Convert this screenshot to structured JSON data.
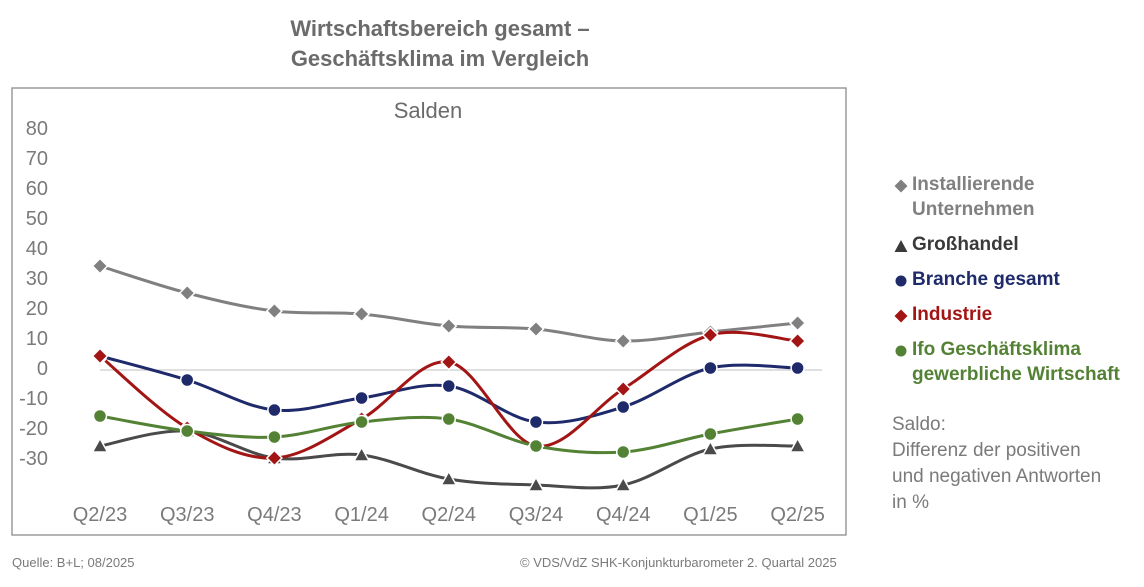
{
  "title_line1": "Wirtschaftsbereich gesamt –",
  "title_line2": "Geschäftsklima im Vergleich",
  "chart_data": {
    "type": "line",
    "subtitle": "Salden",
    "categories": [
      "Q2/23",
      "Q3/23",
      "Q4/23",
      "Q1/24",
      "Q2/24",
      "Q3/24",
      "Q4/24",
      "Q1/25",
      "Q2/25"
    ],
    "yticks": [
      80,
      70,
      60,
      50,
      40,
      30,
      20,
      10,
      0,
      -10,
      -20,
      -30
    ],
    "ylim": [
      -40,
      80
    ],
    "grid": false,
    "legend_position": "right",
    "series": [
      {
        "name": "Installierende Unternehmen",
        "marker": "diamond",
        "color": "#808080",
        "values": [
          34,
          25,
          19,
          18,
          14,
          13,
          9,
          12,
          15
        ]
      },
      {
        "name": "Großhandel",
        "marker": "triangle",
        "color": "#4a4a4a",
        "values": [
          -26,
          -21,
          -30,
          -29,
          -37,
          -39,
          -39,
          -27,
          -26
        ]
      },
      {
        "name": "Branche gesamt",
        "marker": "circle",
        "color": "#1f2a6b",
        "values": [
          4,
          -4,
          -14,
          -10,
          -6,
          -18,
          -13,
          0,
          0
        ]
      },
      {
        "name": "Industrie",
        "marker": "diamond",
        "color": "#a31515",
        "values": [
          4,
          -20,
          -30,
          -17,
          2,
          -26,
          -7,
          11,
          9
        ]
      },
      {
        "name": "Ifo Geschäftsklima gewerbliche Wirtschaft",
        "marker": "circle",
        "color": "#548235",
        "values": [
          -16,
          -21,
          -23,
          -18,
          -17,
          -26,
          -28,
          -22,
          -17
        ]
      }
    ]
  },
  "legend": [
    {
      "line1": "Installierende",
      "line2": "Unternehmen",
      "color": "#808080",
      "marker": "diamond"
    },
    {
      "line1": "Großhandel",
      "line2": "",
      "color": "#3a3a3a",
      "marker": "triangle"
    },
    {
      "line1": "Branche gesamt",
      "line2": "",
      "color": "#1f2a6b",
      "marker": "circle"
    },
    {
      "line1": "Industrie",
      "line2": "",
      "color": "#a31515",
      "marker": "diamond"
    },
    {
      "line1": "Ifo Geschäftsklima",
      "line2": "gewerbliche Wirtschaft",
      "color": "#548235",
      "marker": "circle"
    }
  ],
  "note_lines": [
    "Saldo:",
    "Differenz der positiven",
    "und negativen Antworten",
    "in %"
  ],
  "footer_left": "Quelle: B+L; 08/2025",
  "footer_right": "© VDS/VdZ SHK-Konjunkturbarometer 2. Quartal 2025"
}
